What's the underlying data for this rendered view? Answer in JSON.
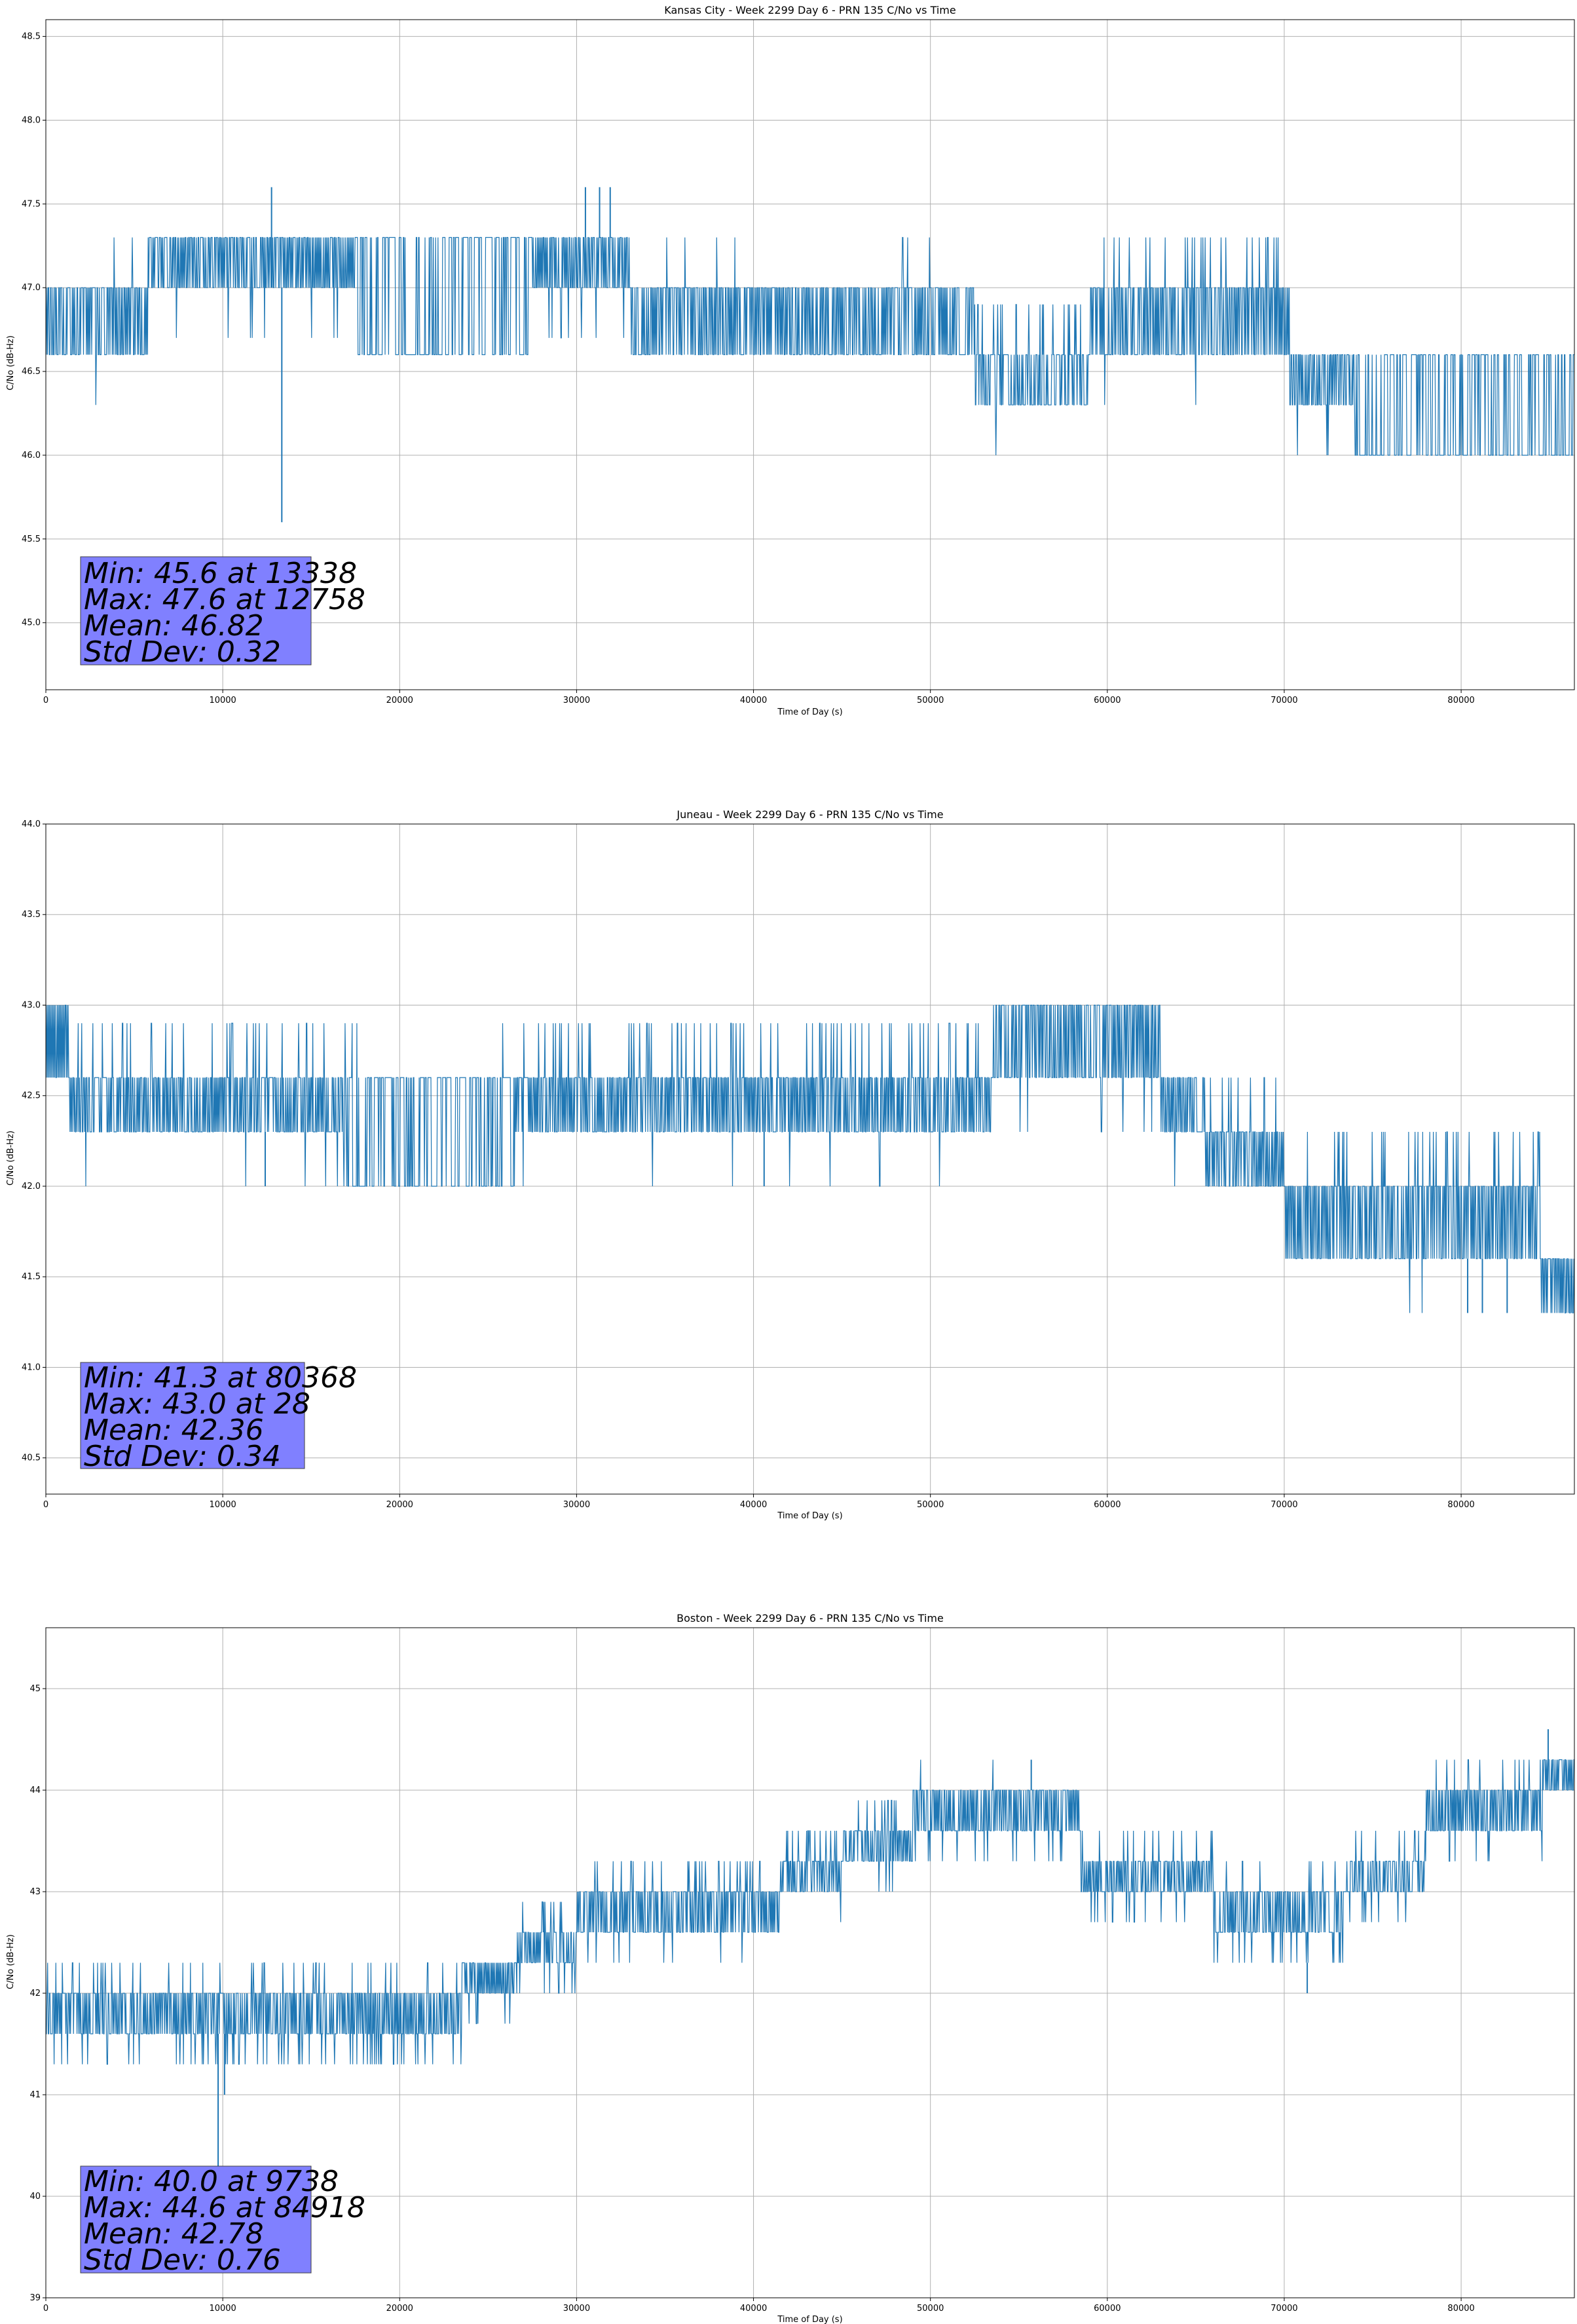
{
  "page": {
    "background": "#ffffff"
  },
  "style": {
    "line_color": "#1f77b4",
    "grid_color": "#b0b0b0",
    "statbox_color": "#8080ff"
  },
  "chart_data": [
    {
      "type": "line",
      "title": "Kansas City - Week 2299 Day 6 - PRN 135 C/No vs Time",
      "xlabel": "Time of Day (s)",
      "ylabel": "C/No (dB-Hz)",
      "xlim": [
        0,
        86400
      ],
      "ylim": [
        44.6,
        48.6
      ],
      "xticks": [
        0,
        10000,
        20000,
        30000,
        40000,
        50000,
        60000,
        70000,
        80000
      ],
      "yticks": [
        45.0,
        45.5,
        46.0,
        46.5,
        47.0,
        47.5,
        48.0,
        48.5
      ],
      "ytick_decimals": 1,
      "grid": true,
      "step": 0.3,
      "stats": {
        "min": "Min: 45.6 at 13338",
        "max": "Max: 47.6 at 12758",
        "mean": "Mean: 46.82",
        "std": "Std Dev: 0.32"
      },
      "segments": [
        {
          "x": [
            0,
            5800
          ],
          "lo": 46.6,
          "hi": 47.0,
          "density": 0.55,
          "up": 0.01,
          "down": 0.01
        },
        {
          "x": [
            5800,
            17500
          ],
          "lo": 47.0,
          "hi": 47.3,
          "density": 0.62,
          "up": 0.0,
          "down": 0.03
        },
        {
          "x": [
            17500,
            27500
          ],
          "lo": 46.6,
          "hi": 47.3,
          "density": 0.3,
          "up": 0.0,
          "down": 0.0
        },
        {
          "x": [
            27500,
            33000
          ],
          "lo": 47.0,
          "hi": 47.3,
          "density": 0.7,
          "up": 0.012,
          "down": 0.05
        },
        {
          "x": [
            33000,
            52500
          ],
          "lo": 46.6,
          "hi": 47.0,
          "density": 0.58,
          "up": 0.02,
          "down": 0.0
        },
        {
          "x": [
            52500,
            59000
          ],
          "lo": 46.3,
          "hi": 46.6,
          "density": 0.4,
          "up": 0.15,
          "down": 0.01
        },
        {
          "x": [
            59000,
            70300
          ],
          "lo": 46.6,
          "hi": 47.0,
          "density": 0.62,
          "up": 0.06,
          "down": 0.01
        },
        {
          "x": [
            70300,
            74000
          ],
          "lo": 46.3,
          "hi": 46.6,
          "density": 0.6,
          "up": 0.01,
          "down": 0.02
        },
        {
          "x": [
            74000,
            86400
          ],
          "lo": 46.0,
          "hi": 46.6,
          "density": 0.3,
          "up": 0.0,
          "down": 0.0
        }
      ],
      "spikes": [
        {
          "x": 12758,
          "lo": 47.0,
          "hi": 47.6
        },
        {
          "x": 13338,
          "lo": 45.6,
          "hi": 47.0
        },
        {
          "x": 30500,
          "lo": 47.3,
          "hi": 47.6
        },
        {
          "x": 31300,
          "lo": 47.3,
          "hi": 47.6
        },
        {
          "x": 31900,
          "lo": 47.3,
          "hi": 47.6
        }
      ]
    },
    {
      "type": "line",
      "title": "Juneau - Week 2299 Day 6 - PRN 135 C/No vs Time",
      "xlabel": "Time of Day (s)",
      "ylabel": "C/No (dB-Hz)",
      "xlim": [
        0,
        86400
      ],
      "ylim": [
        40.3,
        44.0
      ],
      "xticks": [
        0,
        10000,
        20000,
        30000,
        40000,
        50000,
        60000,
        70000,
        80000
      ],
      "yticks": [
        40.5,
        41.0,
        41.5,
        42.0,
        42.5,
        43.0,
        43.5,
        44.0
      ],
      "ytick_decimals": 1,
      "grid": true,
      "step": 0.3,
      "stats": {
        "min": "Min: 41.3 at 80368",
        "max": "Max: 43.0 at 28",
        "mean": "Mean: 42.36",
        "std": "Std Dev: 0.34"
      },
      "segments": [
        {
          "x": [
            0,
            1300
          ],
          "lo": 42.6,
          "hi": 43.0,
          "density": 0.9,
          "up": 0.0,
          "down": 0.0
        },
        {
          "x": [
            1300,
            17000
          ],
          "lo": 42.3,
          "hi": 42.6,
          "density": 0.6,
          "up": 0.06,
          "down": 0.01
        },
        {
          "x": [
            17000,
            26500
          ],
          "lo": 42.0,
          "hi": 42.6,
          "density": 0.3,
          "up": 0.01,
          "down": 0.0
        },
        {
          "x": [
            26500,
            53500
          ],
          "lo": 42.3,
          "hi": 42.6,
          "density": 0.62,
          "up": 0.08,
          "down": 0.012
        },
        {
          "x": [
            53500,
            63000
          ],
          "lo": 42.6,
          "hi": 43.0,
          "density": 0.62,
          "up": 0.0,
          "down": 0.02
        },
        {
          "x": [
            63000,
            65500
          ],
          "lo": 42.3,
          "hi": 42.6,
          "density": 0.6,
          "up": 0.05,
          "down": 0.02
        },
        {
          "x": [
            65500,
            70000
          ],
          "lo": 42.0,
          "hi": 42.3,
          "density": 0.62,
          "up": 0.08,
          "down": 0.0
        },
        {
          "x": [
            70000,
            84500
          ],
          "lo": 41.6,
          "hi": 42.0,
          "density": 0.62,
          "up": 0.08,
          "down": 0.01
        },
        {
          "x": [
            84500,
            86400
          ],
          "lo": 41.3,
          "hi": 41.6,
          "density": 0.7,
          "up": 0.0,
          "down": 0.0
        }
      ],
      "spikes": [
        {
          "x": 12400,
          "lo": 42.0,
          "hi": 42.3
        },
        {
          "x": 40600,
          "lo": 42.0,
          "hi": 42.3
        },
        {
          "x": 80368,
          "lo": 41.3,
          "hi": 41.6
        },
        {
          "x": 81200,
          "lo": 41.3,
          "hi": 41.6
        },
        {
          "x": 82600,
          "lo": 41.3,
          "hi": 41.6
        }
      ]
    },
    {
      "type": "line",
      "title": "Boston - Week 2299 Day 6 - PRN 135 C/No vs Time",
      "xlabel": "Time of Day (s)",
      "ylabel": "C/No (dB-Hz)",
      "xlim": [
        0,
        86400
      ],
      "ylim": [
        39.0,
        45.6
      ],
      "xticks": [
        0,
        10000,
        20000,
        30000,
        40000,
        50000,
        60000,
        70000,
        80000
      ],
      "yticks": [
        39,
        40,
        41,
        42,
        43,
        44,
        45
      ],
      "ytick_decimals": 0,
      "grid": true,
      "step": 0.3,
      "stats": {
        "min": "Min: 40.0 at 9738",
        "max": "Max: 44.6 at 84918",
        "mean": "Mean: 42.78",
        "std": "Std Dev: 0.76"
      },
      "segments": [
        {
          "x": [
            0,
            23500
          ],
          "lo": 41.6,
          "hi": 42.0,
          "density": 0.6,
          "up": 0.05,
          "down": 0.1
        },
        {
          "x": [
            23500,
            26500
          ],
          "lo": 42.0,
          "hi": 42.3,
          "density": 0.7,
          "up": 0.0,
          "down": 0.05
        },
        {
          "x": [
            26500,
            30000
          ],
          "lo": 42.3,
          "hi": 42.6,
          "density": 0.6,
          "up": 0.08,
          "down": 0.06
        },
        {
          "x": [
            30000,
            41500
          ],
          "lo": 42.6,
          "hi": 43.0,
          "density": 0.62,
          "up": 0.1,
          "down": 0.03
        },
        {
          "x": [
            41500,
            45000
          ],
          "lo": 43.0,
          "hi": 43.3,
          "density": 0.6,
          "up": 0.08,
          "down": 0.02
        },
        {
          "x": [
            45000,
            49000
          ],
          "lo": 43.3,
          "hi": 43.6,
          "density": 0.6,
          "up": 0.12,
          "down": 0.03
        },
        {
          "x": [
            49000,
            58500
          ],
          "lo": 43.6,
          "hi": 44.0,
          "density": 0.62,
          "up": 0.01,
          "down": 0.06
        },
        {
          "x": [
            58500,
            66000
          ],
          "lo": 43.0,
          "hi": 43.3,
          "density": 0.62,
          "up": 0.06,
          "down": 0.06
        },
        {
          "x": [
            66000,
            70000
          ],
          "lo": 42.6,
          "hi": 43.0,
          "density": 0.62,
          "up": 0.04,
          "down": 0.08
        },
        {
          "x": [
            70000,
            73500
          ],
          "lo": 42.6,
          "hi": 43.0,
          "density": 0.6,
          "up": 0.03,
          "down": 0.08
        },
        {
          "x": [
            73500,
            78000
          ],
          "lo": 43.0,
          "hi": 43.3,
          "density": 0.6,
          "up": 0.06,
          "down": 0.05
        },
        {
          "x": [
            78000,
            82000
          ],
          "lo": 43.6,
          "hi": 44.0,
          "density": 0.6,
          "up": 0.06,
          "down": 0.06
        },
        {
          "x": [
            82000,
            84600
          ],
          "lo": 43.6,
          "hi": 44.0,
          "density": 0.6,
          "up": 0.07,
          "down": 0.02
        },
        {
          "x": [
            84600,
            86400
          ],
          "lo": 44.0,
          "hi": 44.3,
          "density": 0.75,
          "up": 0.0,
          "down": 0.02
        }
      ],
      "spikes": [
        {
          "x": 9738,
          "lo": 40.0,
          "hi": 41.6
        },
        {
          "x": 10100,
          "lo": 41.0,
          "hi": 41.6
        },
        {
          "x": 84918,
          "lo": 44.3,
          "hi": 44.6
        },
        {
          "x": 55700,
          "lo": 44.0,
          "hi": 44.3
        },
        {
          "x": 71300,
          "lo": 42.0,
          "hi": 42.3
        }
      ]
    }
  ]
}
